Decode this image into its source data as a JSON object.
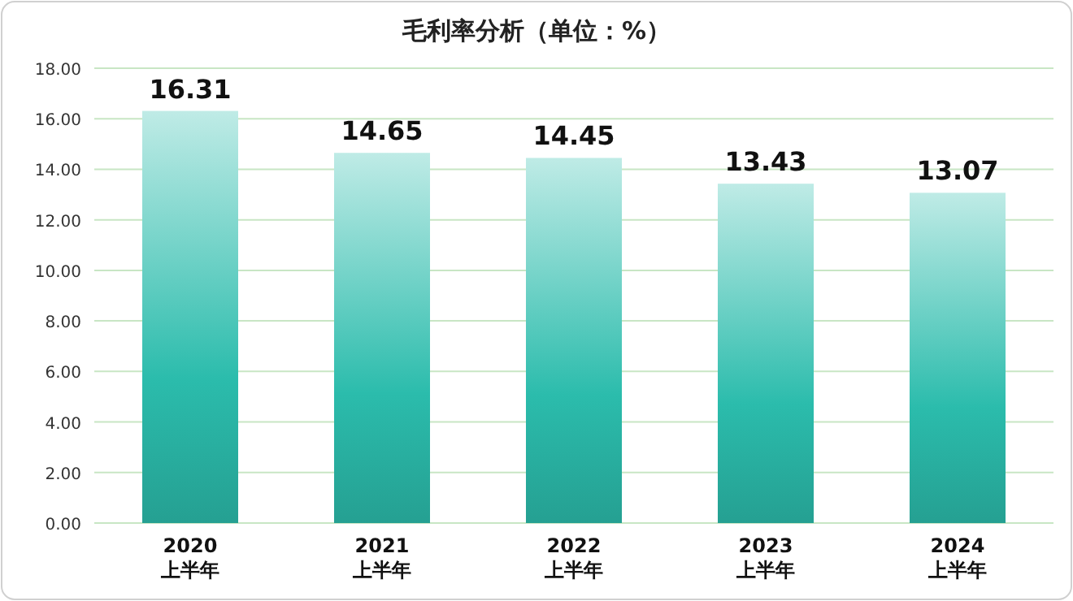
{
  "chart_data": {
    "type": "bar",
    "title": "毛利率分析（单位：%）",
    "categories": [
      "2020\n上半年",
      "2021\n上半年",
      "2022\n上半年",
      "2023\n上半年",
      "2024\n上半年"
    ],
    "values": [
      16.31,
      14.65,
      14.45,
      13.43,
      13.07
    ],
    "color": "#2bbcac",
    "ylim": [
      0,
      18
    ],
    "yticks": [
      {
        "value": 0,
        "label": "0.00"
      },
      {
        "value": 2,
        "label": "2.00"
      },
      {
        "value": 4,
        "label": "4.00"
      },
      {
        "value": 6,
        "label": "6.00"
      },
      {
        "value": 8,
        "label": "8.00"
      },
      {
        "value": 10,
        "label": "10.00"
      },
      {
        "value": 12,
        "label": "12.00"
      },
      {
        "value": 14,
        "label": "14.00"
      },
      {
        "value": 16,
        "label": "16.00"
      },
      {
        "value": 18,
        "label": "18.00"
      }
    ],
    "grid": "y",
    "data_labels": true
  }
}
